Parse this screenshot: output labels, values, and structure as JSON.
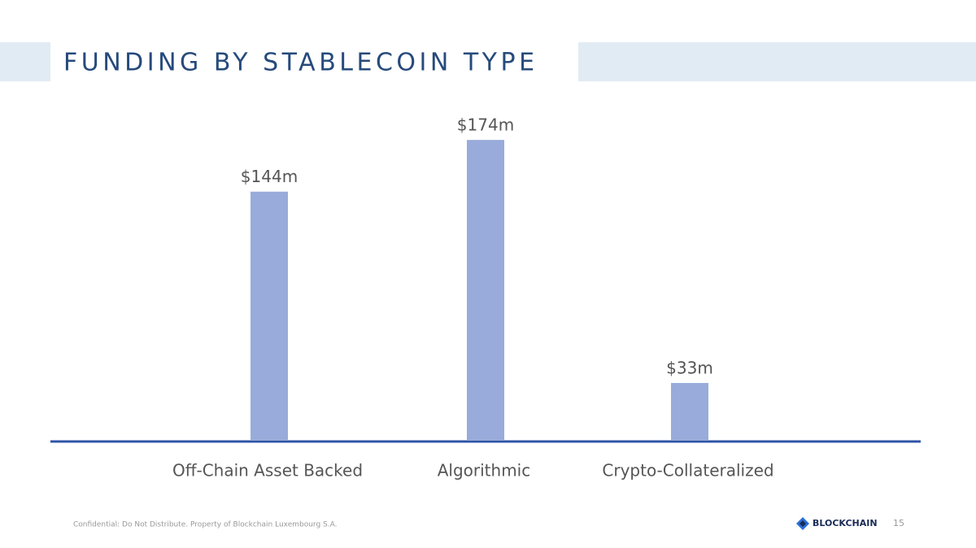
{
  "header": {
    "title": "FUNDING BY STABLECOIN TYPE"
  },
  "chart_data": {
    "type": "bar",
    "categories": [
      "Off-Chain Asset Backed",
      "Algorithmic",
      "Crypto-Collateralized"
    ],
    "values": [
      144,
      174,
      33
    ],
    "value_labels": [
      "$144m",
      "$174m",
      "$33m"
    ],
    "color": "#98abda"
  },
  "footer": {
    "confidential": "Confidential: Do Not Distribute. Property of Blockchain Luxembourg S.A.",
    "logo": "BLOCKCHAIN",
    "page_number": "15"
  }
}
